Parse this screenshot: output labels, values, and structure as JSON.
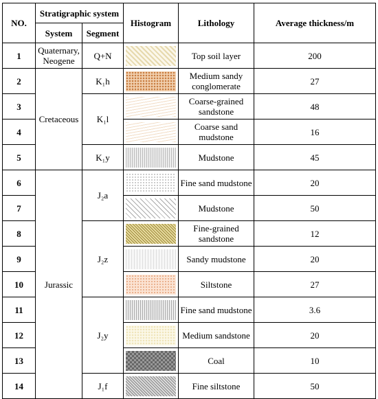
{
  "header": {
    "no": "NO.",
    "stratigraphic_system": "Stratigraphic system",
    "system": "System",
    "segment": "Segment",
    "histogram": "Histogram",
    "lithology": "Lithology",
    "thickness": "Average thickness/m"
  },
  "systems": [
    {
      "name": "Quaternary, Neogene",
      "segments": [
        {
          "name": "Q+N",
          "layers": [
            {
              "no": 1,
              "lithology": "Top soil layer",
              "thickness": 200
            }
          ]
        }
      ]
    },
    {
      "name": "Cretaceous",
      "segments": [
        {
          "name": "K₁h",
          "layers": [
            {
              "no": 2,
              "lithology": "Medium sandy conglomerate",
              "thickness": 27
            }
          ]
        },
        {
          "name": "K₁l",
          "layers": [
            {
              "no": 3,
              "lithology": "Coarse-grained sandstone",
              "thickness": 48
            },
            {
              "no": 4,
              "lithology": "Coarse sand mudstone",
              "thickness": 16
            }
          ]
        },
        {
          "name": "K₁y",
          "layers": [
            {
              "no": 5,
              "lithology": "Mudstone",
              "thickness": 45
            }
          ]
        }
      ]
    },
    {
      "name": "Jurassic",
      "segments": [
        {
          "name": "J₂a",
          "layers": [
            {
              "no": 6,
              "lithology": "Fine sand mudstone",
              "thickness": 20
            },
            {
              "no": 7,
              "lithology": "Mudstone",
              "thickness": 50
            }
          ]
        },
        {
          "name": "J₂z",
          "layers": [
            {
              "no": 8,
              "lithology": "Fine-grained sandstone",
              "thickness": 12
            },
            {
              "no": 9,
              "lithology": "Sandy mudstone",
              "thickness": 20
            },
            {
              "no": 10,
              "lithology": "Siltstone",
              "thickness": 27
            }
          ]
        },
        {
          "name": "J₂y",
          "layers": [
            {
              "no": 11,
              "lithology": "Fine sand mudstone",
              "thickness": 3.6
            },
            {
              "no": 12,
              "lithology": "Medium sandstone",
              "thickness": 20
            },
            {
              "no": 13,
              "lithology": "Coal",
              "thickness": 10
            }
          ]
        },
        {
          "name": "J₁f",
          "layers": [
            {
              "no": 14,
              "lithology": "Fine siltstone",
              "thickness": 50
            }
          ]
        }
      ]
    }
  ]
}
